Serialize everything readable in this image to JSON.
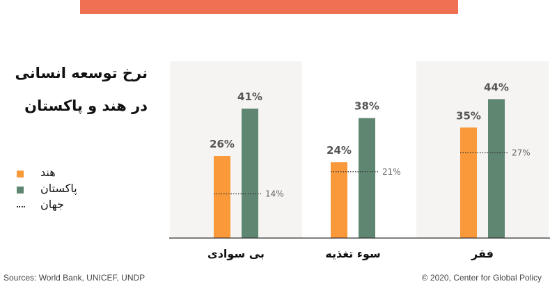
{
  "title_lines": [
    "نرخ توسعه انسانی",
    "در هند و پاکستان"
  ],
  "colors": {
    "top_bar": "#F07053",
    "india": "#F9993A",
    "pakistan": "#5E8670",
    "panel": "#F5F4F2",
    "world": "#333333",
    "axis": "#333333"
  },
  "legend": [
    {
      "label": "هند",
      "type": "swatch",
      "color": "#F9993A"
    },
    {
      "label": "پاکستان",
      "type": "swatch",
      "color": "#5E8670"
    },
    {
      "label": "جهان",
      "type": "dots",
      "color": "#333333"
    }
  ],
  "chart_data": {
    "type": "bar",
    "categories": [
      "بی سوادی",
      "سوء تغذیه",
      "فقر"
    ],
    "series": [
      {
        "name": "هند",
        "values": [
          26,
          24,
          35
        ],
        "labels": [
          "26%",
          "24%",
          "35%"
        ]
      },
      {
        "name": "پاکستان",
        "values": [
          41,
          38,
          44
        ],
        "labels": [
          "41%",
          "38%",
          "44%"
        ]
      }
    ],
    "reference": {
      "name": "جهان",
      "values": [
        14,
        21,
        27
      ],
      "labels": [
        "14%",
        "21%",
        "27%"
      ]
    },
    "ylim": [
      0,
      56
    ],
    "unit": "%",
    "grid": false
  },
  "footer": {
    "source": "Sources: World Bank, UNICEF, UNDP",
    "copyright": "© 2020, Center for Global Policy"
  }
}
